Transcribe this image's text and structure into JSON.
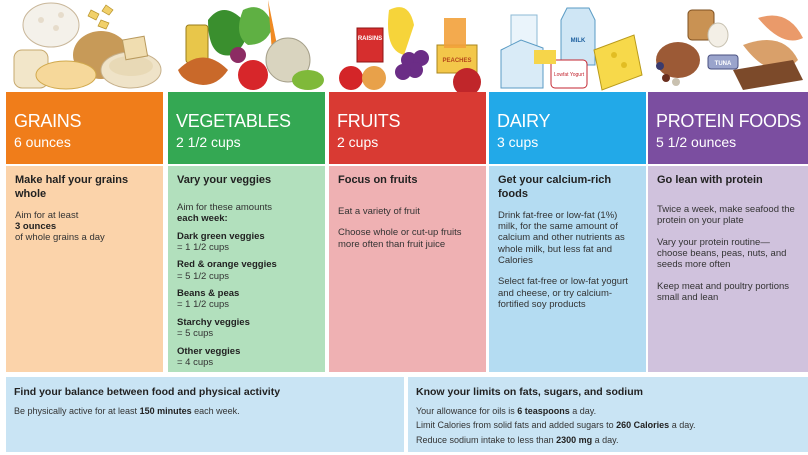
{
  "groups": {
    "grains": {
      "name": "GRAINS",
      "amount": "6 ounces",
      "heading": "Make half your grains whole",
      "text_1": "Aim for at least",
      "highlight": "3 ounces",
      "text_2": "of whole grains a day"
    },
    "vegetables": {
      "name": "VEGETABLES",
      "amount": "2 1/2 cups",
      "heading": "Vary your veggies",
      "intro": "Aim for these amounts",
      "intro_bold": "each week:",
      "items": [
        {
          "name": "Dark green veggies",
          "amount": "= 1 1/2 cups"
        },
        {
          "name": "Red & orange veggies",
          "amount": "= 5 1/2 cups"
        },
        {
          "name": "Beans & peas",
          "amount": "= 1 1/2 cups"
        },
        {
          "name": "Starchy veggies",
          "amount": "= 5 cups"
        },
        {
          "name": "Other veggies",
          "amount": "= 4 cups"
        }
      ]
    },
    "fruits": {
      "name": "FRUITS",
      "amount": "2 cups",
      "heading": "Focus on fruits",
      "p1": "Eat a variety of fruit",
      "p2": "Choose whole or cut-up fruits more often than fruit juice"
    },
    "dairy": {
      "name": "DAIRY",
      "amount": "3 cups",
      "heading": "Get your calcium-rich foods",
      "p1": "Drink fat-free or low-fat (1%) milk, for the same amount of calcium and other nutrients as whole milk, but less fat and Calories",
      "p2": "Select fat-free or low-fat yogurt and cheese, or try calcium-fortified soy products"
    },
    "protein": {
      "name": "PROTEIN FOODS",
      "amount": "5 1/2 ounces",
      "heading": "Go lean with protein",
      "p1": "Twice a week, make seafood the protein on your plate",
      "p2": "Vary your protein routine—choose beans, peas, nuts, and seeds more often",
      "p3": "Keep meat and poultry portions small and lean"
    }
  },
  "art_labels": {
    "raisins": "RAISINS",
    "peaches": "PEACHES",
    "milk": "MILK",
    "yogurt": "Lowfat Yogurt",
    "tuna": "TUNA"
  },
  "balance": {
    "title": "Find your balance between food and physical activity",
    "text_1": "Be physically active for at least",
    "highlight": "150 minutes",
    "text_2": "each week."
  },
  "limits": {
    "title": "Know your limits on fats, sugars, and sodium",
    "line1_a": "Your allowance for oils is",
    "line1_b": "6 teaspoons",
    "line1_c": "a day.",
    "line2_a": "Limit Calories from solid fats and added sugars to",
    "line2_b": "260 Calories",
    "line2_c": "a day.",
    "line3_a": "Reduce sodium intake to less than",
    "line3_b": "2300 mg",
    "line3_c": "a day."
  },
  "colors": {
    "grains": "#f07d1a",
    "vegetables": "#34a853",
    "fruits": "#d93a33",
    "dairy": "#22a9e8",
    "protein": "#7b4ea0"
  }
}
